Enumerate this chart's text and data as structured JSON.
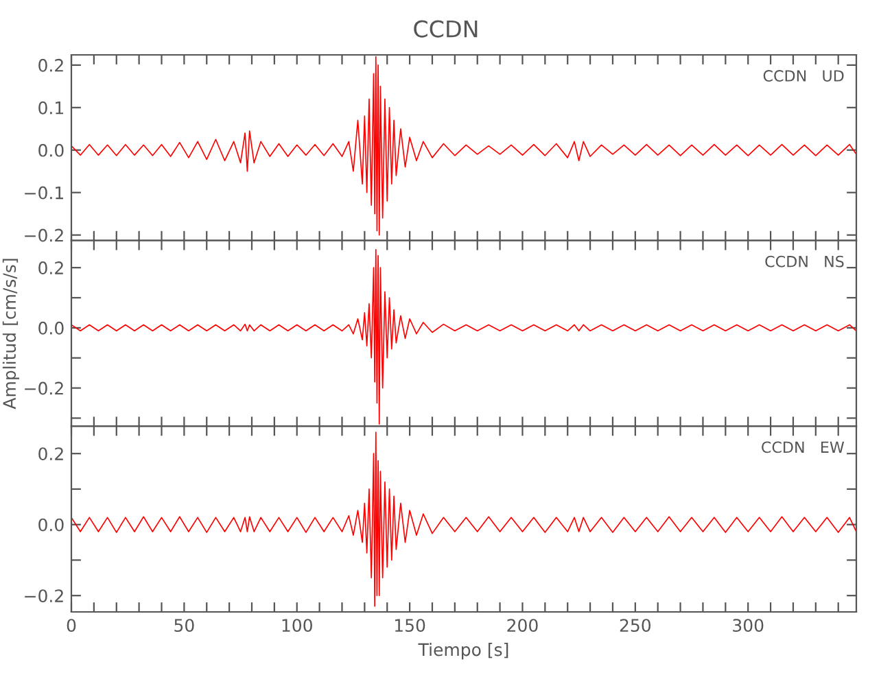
{
  "chart_data": [
    {
      "type": "line",
      "title": "CCDN",
      "annotations": [
        "CCDN   UD"
      ],
      "xlim": [
        0,
        348
      ],
      "ylim": [
        -0.213,
        0.224
      ],
      "tick_labels": "y",
      "grid": false,
      "legend": false,
      "marker": "none",
      "line_style": "solid",
      "xticks": [
        0,
        10,
        20,
        30,
        40,
        50,
        60,
        70,
        80,
        90,
        100,
        110,
        120,
        130,
        140,
        150,
        160,
        170,
        180,
        190,
        200,
        210,
        220,
        230,
        240,
        250,
        260,
        270,
        280,
        290,
        300,
        310,
        320,
        330,
        340
      ],
      "yticks": [
        {
          "value": -0.2,
          "label": "−0.2"
        },
        {
          "value": -0.1,
          "label": "−0.1"
        },
        {
          "value": 0.0,
          "label": "0.0"
        },
        {
          "value": 0.1,
          "label": "0.1"
        },
        {
          "value": 0.2,
          "label": "0.2"
        }
      ],
      "x": [
        0,
        4,
        8,
        12,
        16,
        20,
        24,
        28,
        32,
        36,
        40,
        44,
        48,
        52,
        56,
        60,
        64,
        68,
        72,
        75,
        77,
        78,
        79,
        81,
        84,
        88,
        92,
        96,
        100,
        104,
        108,
        112,
        116,
        120,
        123,
        125,
        127,
        129,
        130,
        131,
        132,
        133,
        134,
        134.5,
        135,
        135.5,
        136,
        136.5,
        137,
        138,
        139,
        140,
        141,
        142,
        143,
        144,
        146,
        148,
        150,
        153,
        156,
        160,
        165,
        170,
        175,
        180,
        185,
        190,
        195,
        200,
        205,
        210,
        215,
        220,
        223,
        225,
        227,
        230,
        235,
        240,
        245,
        250,
        255,
        260,
        265,
        270,
        275,
        280,
        285,
        290,
        295,
        300,
        305,
        310,
        315,
        320,
        325,
        330,
        335,
        340,
        345,
        348
      ],
      "series": [
        {
          "color": "#ff0000",
          "values": [
            0.01,
            -0.012,
            0.013,
            -0.012,
            0.012,
            -0.013,
            0.013,
            -0.012,
            0.012,
            -0.013,
            0.013,
            -0.015,
            0.018,
            -0.018,
            0.02,
            -0.022,
            0.025,
            -0.025,
            0.02,
            -0.03,
            0.04,
            -0.05,
            0.045,
            -0.03,
            0.02,
            -0.015,
            0.015,
            -0.015,
            0.012,
            -0.012,
            0.013,
            -0.013,
            0.015,
            -0.015,
            0.02,
            -0.05,
            0.07,
            -0.08,
            0.08,
            -0.1,
            0.12,
            -0.13,
            0.18,
            -0.15,
            0.22,
            -0.19,
            0.2,
            -0.2,
            0.15,
            -0.16,
            0.12,
            -0.12,
            0.1,
            -0.08,
            0.07,
            -0.06,
            0.05,
            -0.04,
            0.03,
            -0.025,
            0.02,
            -0.018,
            0.015,
            -0.013,
            0.012,
            -0.01,
            0.01,
            -0.01,
            0.012,
            -0.012,
            0.013,
            -0.013,
            0.015,
            -0.018,
            0.02,
            -0.025,
            0.02,
            -0.015,
            0.012,
            -0.01,
            0.012,
            -0.012,
            0.013,
            -0.012,
            0.012,
            -0.013,
            0.012,
            -0.012,
            0.013,
            -0.012,
            0.012,
            -0.013,
            0.012,
            -0.012,
            0.013,
            -0.012,
            0.012,
            -0.013,
            0.012,
            -0.012,
            0.013,
            -0.01
          ]
        }
      ]
    },
    {
      "type": "line",
      "ylabel": "Amplitud [cm/s/s]",
      "annotations": [
        "CCDN   NS"
      ],
      "xlim": [
        0,
        348
      ],
      "ylim": [
        -0.327,
        0.29
      ],
      "tick_labels": "y",
      "grid": false,
      "legend": false,
      "marker": "none",
      "line_style": "solid",
      "xticks": [
        0,
        10,
        20,
        30,
        40,
        50,
        60,
        70,
        80,
        90,
        100,
        110,
        120,
        130,
        140,
        150,
        160,
        170,
        180,
        190,
        200,
        210,
        220,
        230,
        240,
        250,
        260,
        270,
        280,
        290,
        300,
        310,
        320,
        330,
        340
      ],
      "yticks": [
        {
          "value": -0.3,
          "label": null
        },
        {
          "value": -0.2,
          "label": "−0.2"
        },
        {
          "value": -0.1,
          "label": null
        },
        {
          "value": 0.0,
          "label": "0.0"
        },
        {
          "value": 0.1,
          "label": null
        },
        {
          "value": 0.2,
          "label": "0.2"
        }
      ],
      "x": [
        0,
        4,
        8,
        12,
        16,
        20,
        24,
        28,
        32,
        36,
        40,
        44,
        48,
        52,
        56,
        60,
        64,
        68,
        72,
        75,
        77,
        78,
        79,
        81,
        84,
        88,
        92,
        96,
        100,
        104,
        108,
        112,
        116,
        120,
        123,
        125,
        127,
        129,
        130,
        131,
        132,
        133,
        134,
        134.5,
        135,
        135.5,
        136,
        136.5,
        137,
        138,
        139,
        140,
        141,
        142,
        143,
        144,
        146,
        148,
        150,
        153,
        156,
        160,
        165,
        170,
        175,
        180,
        185,
        190,
        195,
        200,
        205,
        210,
        215,
        220,
        223,
        225,
        227,
        230,
        235,
        240,
        245,
        250,
        255,
        260,
        265,
        270,
        275,
        280,
        285,
        290,
        295,
        300,
        305,
        310,
        315,
        320,
        325,
        330,
        335,
        340,
        345,
        348
      ],
      "series": [
        {
          "color": "#ff0000",
          "values": [
            0.01,
            -0.01,
            0.01,
            -0.01,
            0.01,
            -0.01,
            0.01,
            -0.01,
            0.01,
            -0.01,
            0.01,
            -0.01,
            0.01,
            -0.01,
            0.01,
            -0.01,
            0.01,
            -0.01,
            0.01,
            -0.01,
            0.012,
            -0.01,
            0.01,
            -0.01,
            0.01,
            -0.01,
            0.01,
            -0.01,
            0.01,
            -0.01,
            0.01,
            -0.01,
            0.01,
            -0.01,
            0.01,
            -0.02,
            0.03,
            -0.04,
            0.05,
            -0.06,
            0.08,
            -0.1,
            0.2,
            -0.18,
            0.26,
            -0.25,
            0.24,
            -0.32,
            0.2,
            -0.2,
            0.12,
            -0.1,
            0.1,
            -0.07,
            0.06,
            -0.05,
            0.04,
            -0.035,
            0.03,
            -0.02,
            0.018,
            -0.015,
            0.012,
            -0.01,
            0.01,
            -0.01,
            0.01,
            -0.01,
            0.01,
            -0.01,
            0.01,
            -0.01,
            0.01,
            -0.01,
            0.01,
            -0.01,
            0.01,
            -0.01,
            0.01,
            -0.01,
            0.01,
            -0.01,
            0.01,
            -0.01,
            0.01,
            -0.01,
            0.01,
            -0.01,
            0.01,
            -0.01,
            0.01,
            -0.01,
            0.01,
            -0.01,
            0.01,
            -0.01,
            0.01,
            -0.01,
            0.01,
            -0.01,
            0.01,
            -0.01
          ]
        }
      ]
    },
    {
      "type": "line",
      "xlabel": "Tiempo [s]",
      "annotations": [
        "CCDN   EW"
      ],
      "xlim": [
        0,
        348
      ],
      "ylim": [
        -0.246,
        0.277
      ],
      "grid": false,
      "legend": false,
      "marker": "none",
      "line_style": "solid",
      "xticks": [
        0,
        {
          "value": 10,
          "label": null
        },
        {
          "value": 20,
          "label": null
        },
        {
          "value": 30,
          "label": null
        },
        {
          "value": 40,
          "label": null
        },
        50,
        {
          "value": 60,
          "label": null
        },
        {
          "value": 70,
          "label": null
        },
        {
          "value": 80,
          "label": null
        },
        {
          "value": 90,
          "label": null
        },
        100,
        {
          "value": 110,
          "label": null
        },
        {
          "value": 120,
          "label": null
        },
        {
          "value": 130,
          "label": null
        },
        {
          "value": 140,
          "label": null
        },
        150,
        {
          "value": 160,
          "label": null
        },
        {
          "value": 170,
          "label": null
        },
        {
          "value": 180,
          "label": null
        },
        {
          "value": 190,
          "label": null
        },
        200,
        {
          "value": 210,
          "label": null
        },
        {
          "value": 220,
          "label": null
        },
        {
          "value": 230,
          "label": null
        },
        {
          "value": 240,
          "label": null
        },
        250,
        {
          "value": 260,
          "label": null
        },
        {
          "value": 270,
          "label": null
        },
        {
          "value": 280,
          "label": null
        },
        {
          "value": 290,
          "label": null
        },
        300,
        {
          "value": 310,
          "label": null
        },
        {
          "value": 320,
          "label": null
        },
        {
          "value": 330,
          "label": null
        },
        {
          "value": 340,
          "label": null
        }
      ],
      "yticks": [
        {
          "value": -0.2,
          "label": "−0.2"
        },
        {
          "value": -0.1,
          "label": null
        },
        {
          "value": 0.0,
          "label": "0.0"
        },
        {
          "value": 0.1,
          "label": null
        },
        {
          "value": 0.2,
          "label": "0.2"
        }
      ],
      "x": [
        0,
        4,
        8,
        12,
        16,
        20,
        24,
        28,
        32,
        36,
        40,
        44,
        48,
        52,
        56,
        60,
        64,
        68,
        72,
        75,
        77,
        78,
        79,
        81,
        84,
        88,
        92,
        96,
        100,
        104,
        108,
        112,
        116,
        120,
        123,
        125,
        127,
        129,
        130,
        131,
        132,
        133,
        134,
        134.5,
        135,
        135.5,
        136,
        136.5,
        137,
        138,
        139,
        140,
        141,
        142,
        143,
        144,
        146,
        148,
        150,
        153,
        156,
        160,
        165,
        170,
        175,
        180,
        185,
        190,
        195,
        200,
        205,
        210,
        215,
        220,
        223,
        225,
        227,
        230,
        235,
        240,
        245,
        250,
        255,
        260,
        265,
        270,
        275,
        280,
        285,
        290,
        295,
        300,
        305,
        310,
        315,
        320,
        325,
        330,
        335,
        340,
        345,
        348
      ],
      "series": [
        {
          "color": "#ff0000",
          "values": [
            0.02,
            -0.02,
            0.02,
            -0.02,
            0.02,
            -0.022,
            0.02,
            -0.02,
            0.022,
            -0.02,
            0.02,
            -0.02,
            0.022,
            -0.02,
            0.02,
            -0.022,
            0.02,
            -0.02,
            0.02,
            -0.02,
            0.02,
            -0.02,
            0.022,
            -0.02,
            0.02,
            -0.02,
            0.02,
            -0.02,
            0.02,
            -0.022,
            0.02,
            -0.02,
            0.02,
            -0.02,
            0.025,
            -0.03,
            0.04,
            -0.05,
            0.06,
            -0.08,
            0.1,
            -0.15,
            0.2,
            -0.23,
            0.26,
            -0.2,
            0.18,
            -0.2,
            0.15,
            -0.15,
            0.12,
            -0.12,
            0.1,
            -0.1,
            0.08,
            -0.07,
            0.06,
            -0.05,
            0.04,
            -0.03,
            0.03,
            -0.025,
            0.02,
            -0.02,
            0.02,
            -0.02,
            0.022,
            -0.02,
            0.02,
            -0.02,
            0.02,
            -0.022,
            0.02,
            -0.02,
            0.02,
            -0.02,
            0.02,
            -0.02,
            0.02,
            -0.022,
            0.02,
            -0.02,
            0.02,
            -0.02,
            0.022,
            -0.02,
            0.02,
            -0.02,
            0.02,
            -0.022,
            0.02,
            -0.02,
            0.02,
            -0.02,
            0.022,
            -0.02,
            0.02,
            -0.02,
            0.02,
            -0.022,
            0.02,
            -0.02
          ]
        }
      ]
    }
  ]
}
